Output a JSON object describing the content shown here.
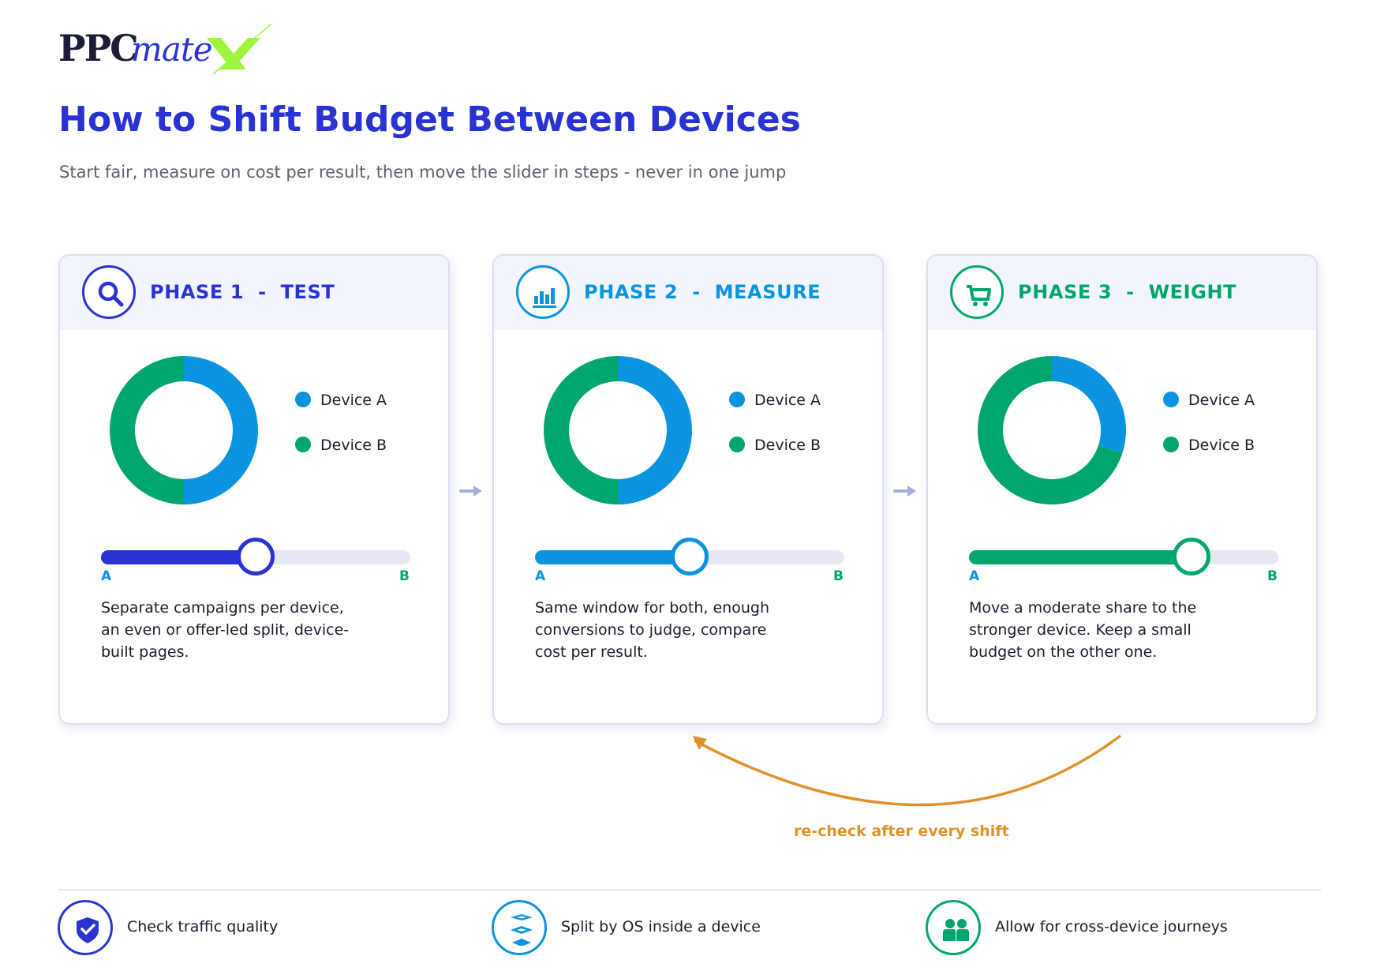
{
  "brand": {
    "part1": "PPC",
    "part2": "mate"
  },
  "colors": {
    "indigo": "#2b32d3",
    "blue": "#0a93df",
    "green": "#00a66b",
    "orange": "#e0912b",
    "track": "#e6e9f4"
  },
  "header": {
    "title": "How to Shift Budget Between Devices",
    "subtitle": "Start fair, measure on cost per result, then move the slider in steps - never in one jump"
  },
  "phases": [
    {
      "title": "PHASE 1  -  TEST",
      "icon": "search-icon",
      "accent": "#2b32d3",
      "legend": [
        "Device A",
        "Device B"
      ],
      "split": {
        "device_a_share": 0.5,
        "device_b_share": 0.5
      },
      "slider": {
        "label_a": "A",
        "label_b": "B",
        "position": 0.5
      },
      "description": "Separate campaigns per device, an even or offer-led split, device-built pages."
    },
    {
      "title": "PHASE 2  -  MEASURE",
      "icon": "bar-chart-icon",
      "accent": "#0a93df",
      "legend": [
        "Device A",
        "Device B"
      ],
      "split": {
        "device_a_share": 0.5,
        "device_b_share": 0.5
      },
      "slider": {
        "label_a": "A",
        "label_b": "B",
        "position": 0.5
      },
      "description": "Same window for both, enough conversions to judge, compare cost per result."
    },
    {
      "title": "PHASE 3  -  WEIGHT",
      "icon": "cart-icon",
      "accent": "#00a66b",
      "legend": [
        "Device A",
        "Device B"
      ],
      "split": {
        "device_a_share": 0.3,
        "device_b_share": 0.7
      },
      "slider": {
        "label_a": "A",
        "label_b": "B",
        "position": 0.72
      },
      "description": "Move a moderate share to the stronger device. Keep a small budget on the other one."
    }
  ],
  "loop": {
    "label": "re-check after every shift"
  },
  "footer": [
    {
      "label": "Check traffic quality",
      "icon": "shield-check-icon"
    },
    {
      "label": "Split by OS inside a device",
      "icon": "layers-icon"
    },
    {
      "label": "Allow for cross-device journeys",
      "icon": "people-icon"
    }
  ]
}
